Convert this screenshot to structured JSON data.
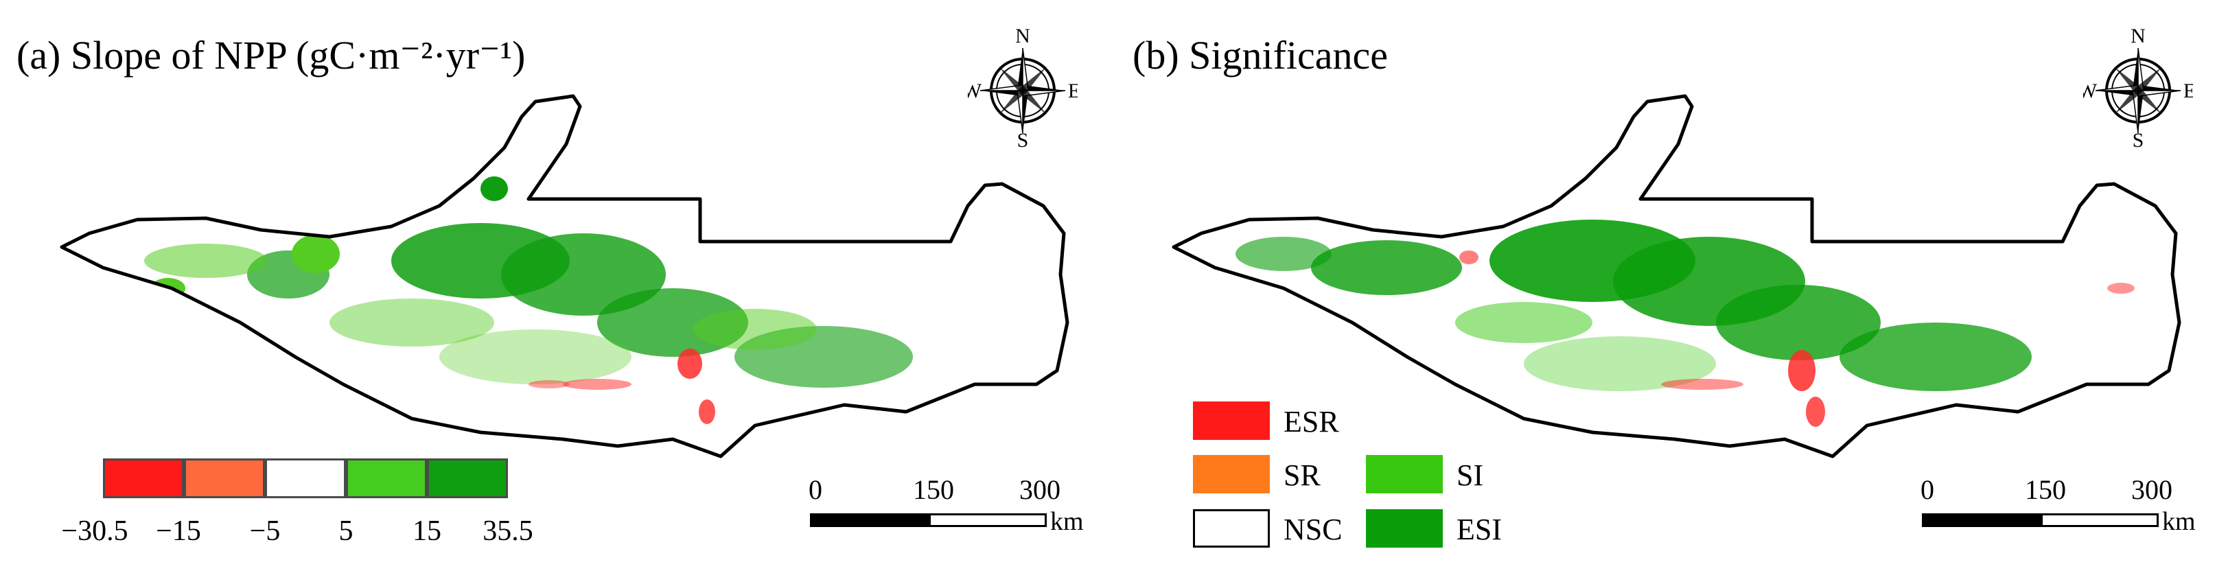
{
  "panel_a": {
    "title": "(a) Slope of NPP (gC·m⁻²·yr⁻¹)",
    "colorbar": {
      "colors": [
        "#ff1a1a",
        "#ff6a3d",
        "#ffffff",
        "#44cc1e",
        "#0f9e0f"
      ],
      "ticks": [
        "−30.5",
        "−15",
        "−5",
        "5",
        "15",
        "35.5"
      ]
    }
  },
  "panel_b": {
    "title": "(b) Significance",
    "legend": [
      {
        "label": "ESR",
        "color": "#ff1a1a"
      },
      {
        "label": "SR",
        "color": "#ff7a1a"
      },
      {
        "label": "NSC",
        "color": "#ffffff"
      },
      {
        "label": "SI",
        "color": "#38c80f"
      },
      {
        "label": "ESI",
        "color": "#0a9e0a"
      }
    ]
  },
  "compass": {
    "n": "N",
    "s": "S",
    "e": "E",
    "w": "W"
  },
  "scale_bar": {
    "ticks": [
      "0",
      "150",
      "300"
    ],
    "unit": "km"
  },
  "colors": {
    "boundary": "#000000",
    "green_dark": "#0f9e0f",
    "green_light": "#55cc22",
    "red": "#ff2a2a"
  }
}
